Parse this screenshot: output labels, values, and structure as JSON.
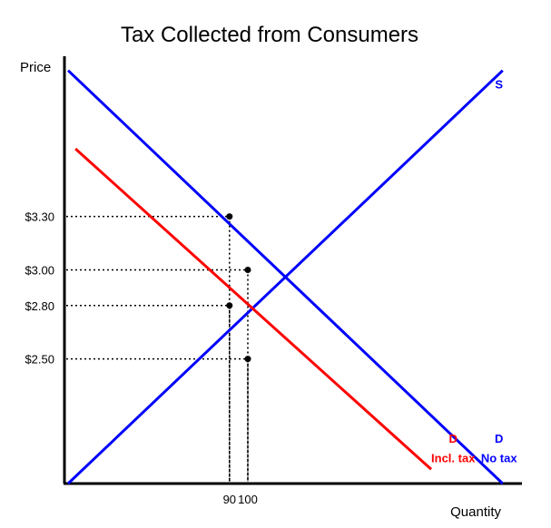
{
  "chart_data": {
    "type": "line",
    "title": "Tax Collected from Consumers",
    "xlabel": "Quantity",
    "ylabel": "Price",
    "xlim": [
      0,
      250
    ],
    "ylim": [
      1.8,
      4.2
    ],
    "grid": false,
    "legend": "none",
    "x_ticks": [
      {
        "value": 90,
        "label": "90"
      },
      {
        "value": 100,
        "label": "100"
      }
    ],
    "y_ticks": [
      {
        "value": 3.3,
        "label": "$3.30"
      },
      {
        "value": 3.0,
        "label": "$3.00"
      },
      {
        "value": 2.8,
        "label": "$2.80"
      },
      {
        "value": 2.5,
        "label": "$2.50"
      }
    ],
    "series": [
      {
        "name": "S",
        "color": "#0000ff",
        "points": [
          [
            2,
            1.8
          ],
          [
            239,
            4.12
          ]
        ]
      },
      {
        "name": "D No tax",
        "color": "#0000ff",
        "points": [
          [
            2,
            4.12
          ],
          [
            239,
            1.8
          ]
        ]
      },
      {
        "name": "D Incl. tax",
        "color": "#ff0000",
        "points": [
          [
            6,
            3.68
          ],
          [
            200,
            1.88
          ]
        ]
      }
    ],
    "points": [
      {
        "x": 90,
        "y": 3.3
      },
      {
        "x": 100,
        "y": 3.0
      },
      {
        "x": 90,
        "y": 2.8
      },
      {
        "x": 100,
        "y": 2.5
      }
    ],
    "annotations": [
      {
        "text": "S",
        "x": 237,
        "y": 4.02,
        "color": "#0000ff"
      },
      {
        "text": "D",
        "x": 212,
        "y": 2.03,
        "color": "#ff0000"
      },
      {
        "text": "Incl. tax",
        "x": 212,
        "y": 1.92,
        "color": "#ff0000"
      },
      {
        "text": "D",
        "x": 237,
        "y": 2.03,
        "color": "#0000ff"
      },
      {
        "text": "No tax",
        "x": 237,
        "y": 1.92,
        "color": "#0000ff"
      }
    ]
  }
}
